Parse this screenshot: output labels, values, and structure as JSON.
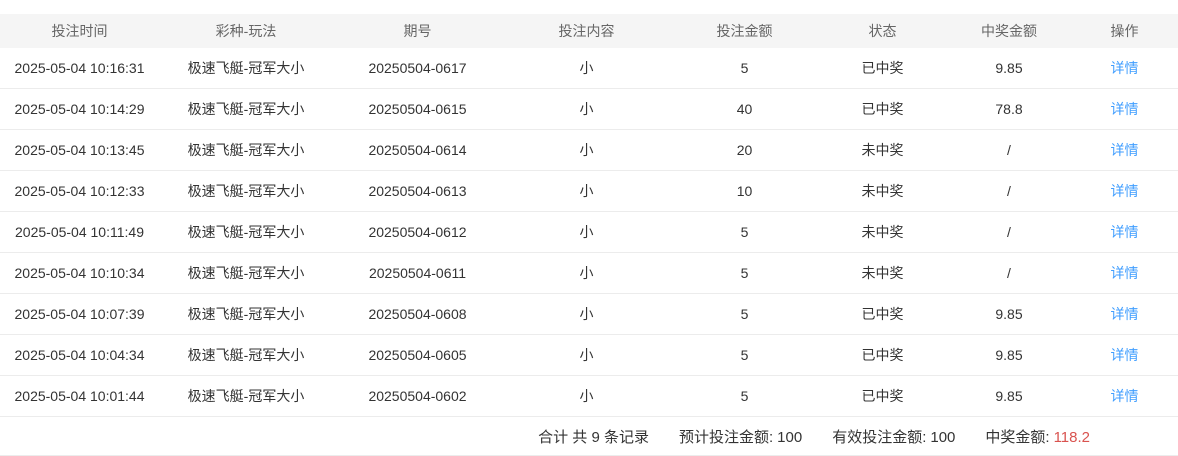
{
  "table": {
    "columns": [
      {
        "label": "投注时间"
      },
      {
        "label": "彩种-玩法"
      },
      {
        "label": "期号"
      },
      {
        "label": "投注内容"
      },
      {
        "label": "投注金额"
      },
      {
        "label": "状态"
      },
      {
        "label": "中奖金额"
      },
      {
        "label": "操作"
      }
    ],
    "rows": [
      {
        "time": "2025-05-04 10:16:31",
        "game": "极速飞艇-冠军大小",
        "issue": "20250504-0617",
        "content": "小",
        "amount": "5",
        "status": "已中奖",
        "won": true,
        "prize": "9.85",
        "action": "详情"
      },
      {
        "time": "2025-05-04 10:14:29",
        "game": "极速飞艇-冠军大小",
        "issue": "20250504-0615",
        "content": "小",
        "amount": "40",
        "status": "已中奖",
        "won": true,
        "prize": "78.8",
        "action": "详情"
      },
      {
        "time": "2025-05-04 10:13:45",
        "game": "极速飞艇-冠军大小",
        "issue": "20250504-0614",
        "content": "小",
        "amount": "20",
        "status": "未中奖",
        "won": false,
        "prize": "/",
        "action": "详情"
      },
      {
        "time": "2025-05-04 10:12:33",
        "game": "极速飞艇-冠军大小",
        "issue": "20250504-0613",
        "content": "小",
        "amount": "10",
        "status": "未中奖",
        "won": false,
        "prize": "/",
        "action": "详情"
      },
      {
        "time": "2025-05-04 10:11:49",
        "game": "极速飞艇-冠军大小",
        "issue": "20250504-0612",
        "content": "小",
        "amount": "5",
        "status": "未中奖",
        "won": false,
        "prize": "/",
        "action": "详情"
      },
      {
        "time": "2025-05-04 10:10:34",
        "game": "极速飞艇-冠军大小",
        "issue": "20250504-0611",
        "content": "小",
        "amount": "5",
        "status": "未中奖",
        "won": false,
        "prize": "/",
        "action": "详情"
      },
      {
        "time": "2025-05-04 10:07:39",
        "game": "极速飞艇-冠军大小",
        "issue": "20250504-0608",
        "content": "小",
        "amount": "5",
        "status": "已中奖",
        "won": true,
        "prize": "9.85",
        "action": "详情"
      },
      {
        "time": "2025-05-04 10:04:34",
        "game": "极速飞艇-冠军大小",
        "issue": "20250504-0605",
        "content": "小",
        "amount": "5",
        "status": "已中奖",
        "won": true,
        "prize": "9.85",
        "action": "详情"
      },
      {
        "time": "2025-05-04 10:01:44",
        "game": "极速飞艇-冠军大小",
        "issue": "20250504-0602",
        "content": "小",
        "amount": "5",
        "status": "已中奖",
        "won": true,
        "prize": "9.85",
        "action": "详情"
      }
    ]
  },
  "summary": {
    "total_label": "合计 共 9 条记录",
    "expected_label": "预计投注金额:",
    "expected_value": "100",
    "valid_label": "有效投注金额:",
    "valid_value": "100",
    "prize_label": "中奖金额:",
    "prize_value": "118.2"
  },
  "colors": {
    "win_red": "#d9534f",
    "link_blue": "#409eff",
    "header_bg": "#f5f5f5",
    "row_border": "#ececec"
  }
}
